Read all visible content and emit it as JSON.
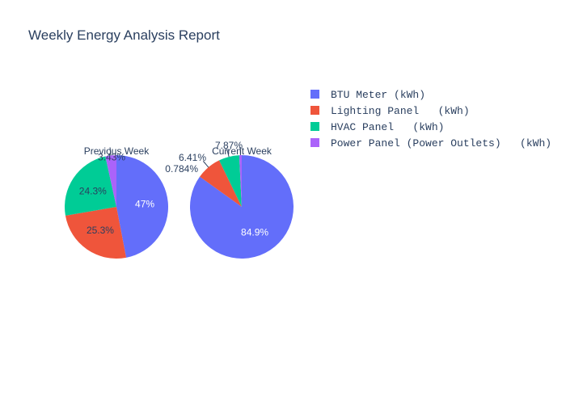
{
  "chart_data": {
    "type": "pie",
    "title": "Weekly Energy Analysis Report",
    "categories": [
      "BTU Meter (kWh)",
      "Lighting Panel   (kWh)",
      "HVAC Panel   (kWh)",
      "Power Panel (Power Outlets)   (kWh)"
    ],
    "colors": [
      "#636efa",
      "#EF553B",
      "#00cc96",
      "#ab63fa"
    ],
    "legend_position": "top-right",
    "pies": [
      {
        "subtitle": "Previous Week",
        "values": [
          47.0,
          25.3,
          24.3,
          3.43
        ],
        "labels": [
          "47%",
          "25.3%",
          "24.3%",
          "3.43%"
        ]
      },
      {
        "subtitle": "Current Week",
        "values": [
          84.9,
          7.87,
          6.41,
          0.784
        ],
        "labels": [
          "84.9%",
          "7.87%",
          "6.41%",
          "0.784%"
        ]
      }
    ]
  }
}
